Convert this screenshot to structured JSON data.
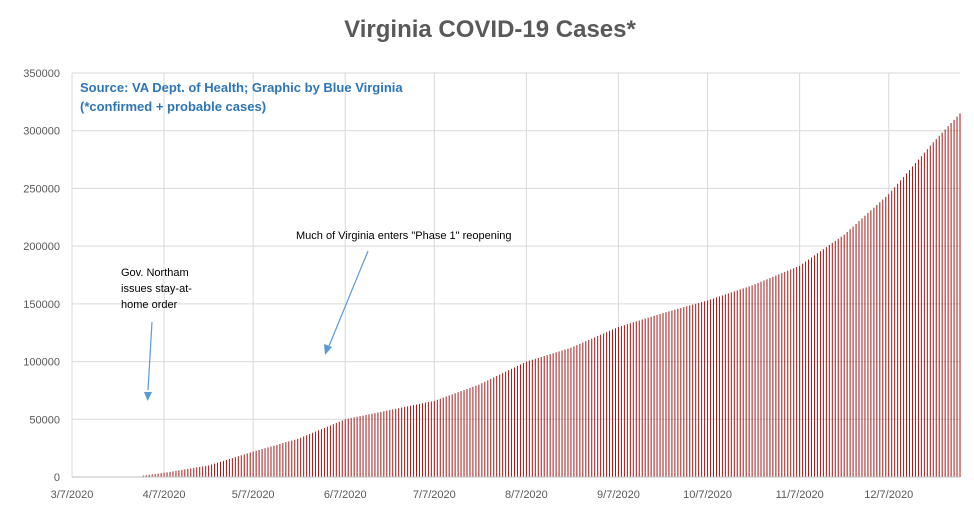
{
  "chart_data": {
    "type": "bar",
    "title": "Virginia COVID-19 Cases*",
    "subtitle_lines": [
      "Source: VA Dept. of Health; Graphic by Blue Virginia",
      "(*confirmed + probable cases)"
    ],
    "xlabel": "",
    "ylabel": "",
    "ylim": [
      0,
      350000
    ],
    "y_ticks": [
      0,
      50000,
      100000,
      150000,
      200000,
      250000,
      300000,
      350000
    ],
    "y_tick_labels": [
      "0",
      "50000",
      "100000",
      "150000",
      "200000",
      "250000",
      "300000",
      "350000"
    ],
    "x_start_date": "2020-03-07",
    "x_end_date": "2020-12-31",
    "x_tick_dates": [
      "2020-03-07",
      "2020-04-07",
      "2020-05-07",
      "2020-06-07",
      "2020-07-07",
      "2020-08-07",
      "2020-09-07",
      "2020-10-07",
      "2020-11-07",
      "2020-12-07"
    ],
    "x_tick_labels": [
      "3/7/2020",
      "4/7/2020",
      "5/7/2020",
      "6/7/2020",
      "7/7/2020",
      "8/7/2020",
      "9/7/2020",
      "10/7/2020",
      "11/7/2020",
      "12/7/2020"
    ],
    "grid": true,
    "bar_color": "#9b1b1b",
    "key_points": [
      {
        "date": "2020-03-07",
        "value": 0
      },
      {
        "date": "2020-03-31",
        "value": 1200
      },
      {
        "date": "2020-04-07",
        "value": 3600
      },
      {
        "date": "2020-04-22",
        "value": 10000
      },
      {
        "date": "2020-05-07",
        "value": 22000
      },
      {
        "date": "2020-05-22",
        "value": 33000
      },
      {
        "date": "2020-06-07",
        "value": 50000
      },
      {
        "date": "2020-06-22",
        "value": 58000
      },
      {
        "date": "2020-07-07",
        "value": 66000
      },
      {
        "date": "2020-07-22",
        "value": 80000
      },
      {
        "date": "2020-08-07",
        "value": 100000
      },
      {
        "date": "2020-08-22",
        "value": 112000
      },
      {
        "date": "2020-09-07",
        "value": 130000
      },
      {
        "date": "2020-09-22",
        "value": 142000
      },
      {
        "date": "2020-10-07",
        "value": 153000
      },
      {
        "date": "2020-10-22",
        "value": 166000
      },
      {
        "date": "2020-11-07",
        "value": 183000
      },
      {
        "date": "2020-11-22",
        "value": 210000
      },
      {
        "date": "2020-12-07",
        "value": 245000
      },
      {
        "date": "2020-12-22",
        "value": 290000
      },
      {
        "date": "2020-12-31",
        "value": 315000
      }
    ],
    "annotations": [
      {
        "id": "stay-at-home",
        "lines": [
          "Gov. Northam",
          "issues stay-at-",
          "home order"
        ],
        "date": "2020-03-30"
      },
      {
        "id": "phase-1",
        "lines": [
          "Much of Virginia enters \"Phase 1\" reopening"
        ],
        "date": "2020-05-15"
      }
    ]
  },
  "colors": {
    "title": "#595959",
    "subtitle": "#2e75b6",
    "axis_text": "#595959",
    "grid": "#d9d9d9",
    "annotation_text": "#000000",
    "arrow": "#5b9bd5"
  }
}
